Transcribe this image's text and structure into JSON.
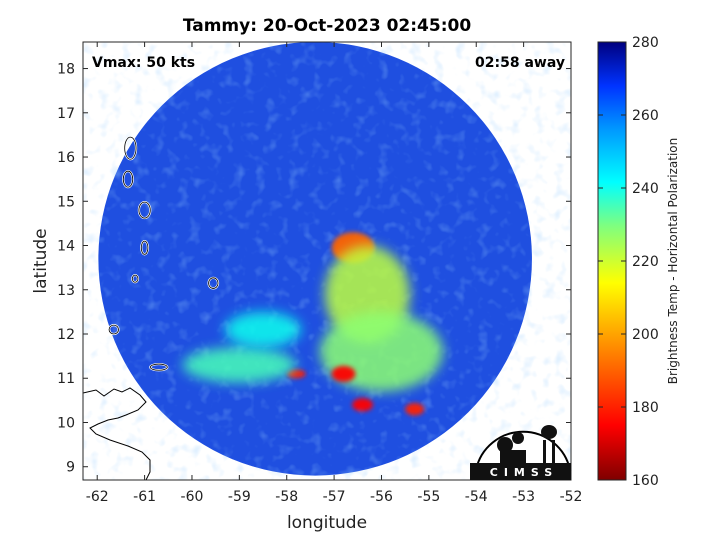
{
  "title": "Tammy: 20-Oct-2023 02:45:00",
  "vmax_label": "Vmax: 50 kts",
  "time_away_label": "02:58 away",
  "xlabel": "longitude",
  "ylabel": "latitude",
  "colorbar_label": "Brightness Temp - Horizontal Polarization",
  "logo_text": "CIMSS",
  "chart_data": {
    "type": "heatmap",
    "xlim": [
      -62.3,
      -52
    ],
    "ylim": [
      8.7,
      18.6
    ],
    "x_ticks": [
      "-62",
      "-61",
      "-60",
      "-59",
      "-58",
      "-57",
      "-56",
      "-55",
      "-54",
      "-53",
      "-52"
    ],
    "y_ticks": [
      "9",
      "10",
      "11",
      "12",
      "13",
      "14",
      "15",
      "16",
      "17",
      "18"
    ],
    "colorbar": {
      "min": 160,
      "max": 280,
      "ticks": [
        "280",
        "260",
        "240",
        "220",
        "200",
        "180",
        "160"
      ]
    },
    "swath": {
      "center_lon": -57.4,
      "center_lat": 13.7,
      "radius_deg": 4.9
    },
    "warm_regions": [
      {
        "lon": -56.6,
        "lat": 13.95,
        "rx": 0.45,
        "ry": 0.35,
        "temp": 190
      },
      {
        "lon": -56.3,
        "lat": 12.9,
        "rx": 0.9,
        "ry": 1.1,
        "temp": 222
      },
      {
        "lon": -56.0,
        "lat": 11.6,
        "rx": 1.3,
        "ry": 0.9,
        "temp": 228
      },
      {
        "lon": -56.8,
        "lat": 11.1,
        "rx": 0.25,
        "ry": 0.18,
        "temp": 175
      },
      {
        "lon": -57.8,
        "lat": 11.1,
        "rx": 0.2,
        "ry": 0.1,
        "temp": 178
      },
      {
        "lon": -55.3,
        "lat": 10.3,
        "rx": 0.2,
        "ry": 0.14,
        "temp": 180
      },
      {
        "lon": -56.4,
        "lat": 10.4,
        "rx": 0.22,
        "ry": 0.15,
        "temp": 175
      },
      {
        "lon": -59.0,
        "lat": 11.3,
        "rx": 1.2,
        "ry": 0.4,
        "temp": 235
      },
      {
        "lon": -58.5,
        "lat": 12.1,
        "rx": 0.8,
        "ry": 0.4,
        "temp": 240
      }
    ],
    "islands": [
      {
        "lon": -61.3,
        "lat": 16.2,
        "rx": 0.12,
        "ry": 0.25
      },
      {
        "lon": -61.35,
        "lat": 15.5,
        "rx": 0.1,
        "ry": 0.18
      },
      {
        "lon": -61.0,
        "lat": 14.8,
        "rx": 0.12,
        "ry": 0.18
      },
      {
        "lon": -61.0,
        "lat": 13.95,
        "rx": 0.07,
        "ry": 0.15
      },
      {
        "lon": -61.2,
        "lat": 13.25,
        "rx": 0.06,
        "ry": 0.08
      },
      {
        "lon": -59.55,
        "lat": 13.15,
        "rx": 0.1,
        "ry": 0.12
      },
      {
        "lon": -61.65,
        "lat": 12.1,
        "rx": 0.1,
        "ry": 0.1
      },
      {
        "lon": -60.7,
        "lat": 11.25,
        "rx": 0.18,
        "ry": 0.07
      }
    ]
  }
}
